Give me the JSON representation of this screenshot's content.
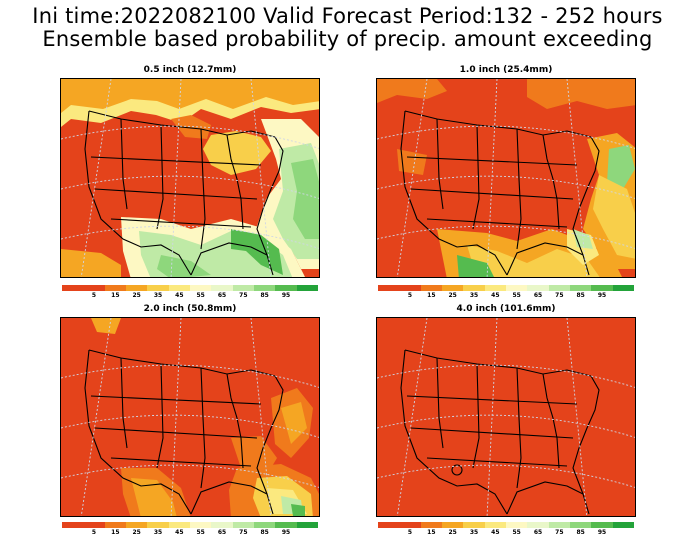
{
  "header": {
    "line1": "Ini time:2022082100  Valid Forecast Period:132 - 252 hours",
    "line2": "Ensemble based probability of precip. amount exceeding"
  },
  "panels": [
    {
      "title": "0.5 inch (12.7mm)"
    },
    {
      "title": "1.0 inch (25.4mm)"
    },
    {
      "title": "2.0 inch (50.8mm)"
    },
    {
      "title": "4.0 inch (101.6mm)"
    }
  ],
  "colorbar": {
    "labels": [
      "5",
      "15",
      "25",
      "35",
      "45",
      "55",
      "65",
      "75",
      "85",
      "95"
    ],
    "colors": [
      "#e4431b",
      "#e4431b",
      "#f07a1c",
      "#f5a623",
      "#f8cf4a",
      "#fbe97f",
      "#fdf8c3",
      "#e9f7c9",
      "#bfeaa6",
      "#8ed77c",
      "#55bb4f",
      "#23a33a"
    ]
  },
  "palette": {
    "red": "#e4431b",
    "orange": "#f07a1c",
    "amber": "#f5a623",
    "yellow": "#f8cf4a",
    "pale": "#fbe97f",
    "cream": "#fdf8c3",
    "mint": "#e9f7c9",
    "lightgreen": "#bfeaa6",
    "green": "#8ed77c",
    "darkgreen": "#55bb4f"
  }
}
